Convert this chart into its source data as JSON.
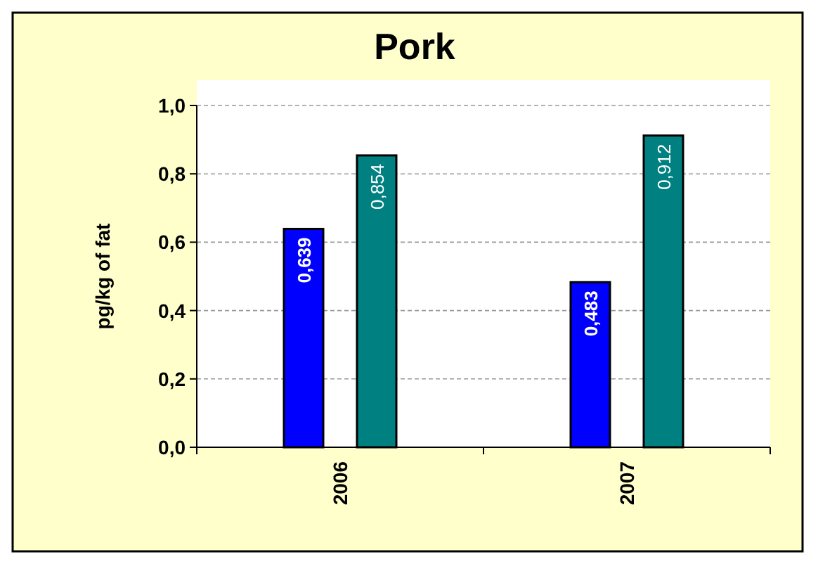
{
  "chart_data": {
    "type": "bar",
    "title": "Pork",
    "ylabel": "pg/kg of fat",
    "categories": [
      "2006",
      "2007"
    ],
    "series": [
      {
        "color": "#0000ff",
        "values": [
          0.639,
          0.483
        ],
        "value_labels": [
          "0,639",
          "0,483"
        ]
      },
      {
        "color": "#008080",
        "values": [
          0.854,
          0.912
        ],
        "value_labels": [
          "0,854",
          "0,912"
        ]
      }
    ],
    "ylim": [
      0,
      1
    ],
    "yticks": [
      {
        "value": 0,
        "label": "0,0"
      },
      {
        "value": 0.2,
        "label": "0,2"
      },
      {
        "value": 0.4,
        "label": "0,4"
      },
      {
        "value": 0.6,
        "label": "0,6"
      },
      {
        "value": 0.8,
        "label": "0,8"
      },
      {
        "value": 1,
        "label": "1,0"
      }
    ],
    "grid": "y"
  }
}
